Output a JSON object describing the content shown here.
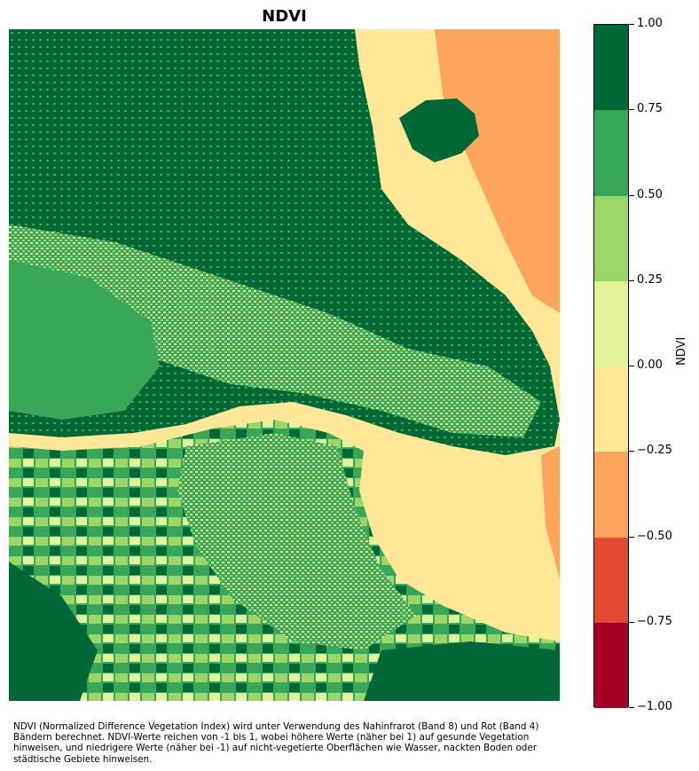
{
  "title": "NDVI",
  "colorbar": {
    "label": "NDVI",
    "ticks": [
      "1.00",
      "0.75",
      "0.50",
      "0.25",
      "0.00",
      "−0.25",
      "−0.50",
      "−0.75",
      "−1.00"
    ],
    "bins": [
      {
        "range": [
          0.75,
          1.0
        ],
        "color": "#006837"
      },
      {
        "range": [
          0.5,
          0.75
        ],
        "color": "#39a759"
      },
      {
        "range": [
          0.25,
          0.5
        ],
        "color": "#9cd667"
      },
      {
        "range": [
          0.0,
          0.25
        ],
        "color": "#e3f399"
      },
      {
        "range": [
          -0.25,
          0.0
        ],
        "color": "#fee797"
      },
      {
        "range": [
          -0.5,
          -0.25
        ],
        "color": "#fca55d"
      },
      {
        "range": [
          -0.75,
          -0.5
        ],
        "color": "#e24b33"
      },
      {
        "range": [
          -1.0,
          -0.75
        ],
        "color": "#a50026"
      }
    ]
  },
  "caption": "NDVI (Normalized Difference Vegetation Index) wird unter Verwendung des Nahinfrarot (Band 8) und Rot (Band 4) Bändern berechnet. NDVI-Werte reichen von -1 bis 1, wobei höhere Werte (näher bei 1) auf gesunde Vegetation hinweisen, und niedrigere Werte (näher bei -1) auf nicht-vegetierte Oberflächen wie Wasser, nackten Boden oder städtische Gebiete hinweisen."
}
